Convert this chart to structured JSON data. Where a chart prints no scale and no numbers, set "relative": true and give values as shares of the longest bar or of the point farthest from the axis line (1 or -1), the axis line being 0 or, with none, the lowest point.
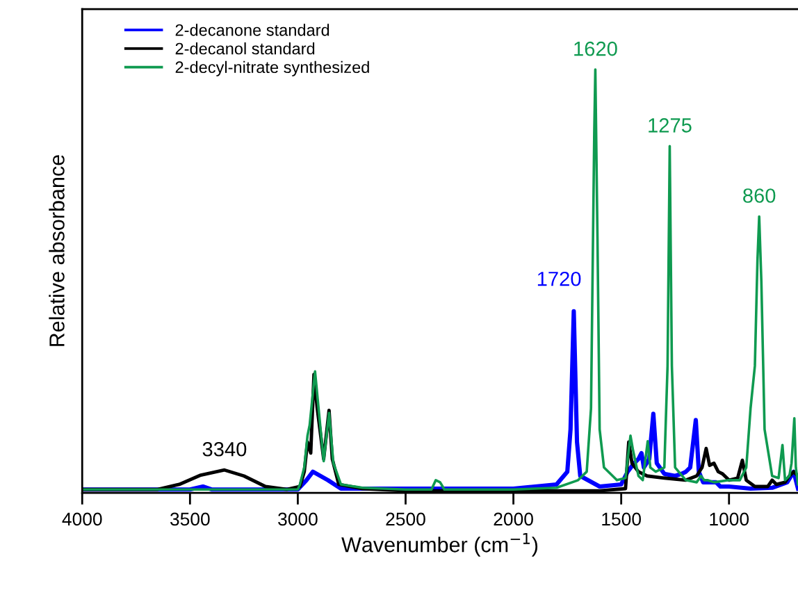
{
  "chart_data": {
    "type": "line",
    "relative": true,
    "xlabel": "Wavenumber (cm$^{−1}$)",
    "ylabel": "Relative absorbance",
    "xlim": [
      4000,
      680
    ],
    "xticks": [
      4000,
      3500,
      3000,
      2500,
      2000,
      1500,
      1000
    ],
    "grid": false,
    "legend": "top left",
    "tick_labels": "x",
    "marker": "none",
    "line_style": "solid",
    "series": [
      {
        "name": "2-decanone standard",
        "color": "#0000ff",
        "x": [
          4000,
          3500,
          3440,
          3400,
          3000,
          2960,
          2930,
          2860,
          2800,
          2000,
          1800,
          1750,
          1735,
          1720,
          1705,
          1690,
          1600,
          1500,
          1470,
          1440,
          1420,
          1406,
          1395,
          1370,
          1351,
          1335,
          1300,
          1250,
          1220,
          1200,
          1180,
          1154,
          1140,
          1120,
          1060,
          1040,
          1000,
          900,
          800,
          730,
          700,
          690,
          680
        ],
        "values": [
          0.008,
          0.008,
          0.015,
          0.008,
          0.008,
          0.03,
          0.05,
          0.03,
          0.01,
          0.01,
          0.02,
          0.05,
          0.15,
          0.429,
          0.12,
          0.04,
          0.015,
          0.02,
          0.05,
          0.07,
          0.08,
          0.094,
          0.06,
          0.08,
          0.187,
          0.07,
          0.045,
          0.04,
          0.045,
          0.05,
          0.06,
          0.172,
          0.05,
          0.025,
          0.025,
          0.015,
          0.015,
          0.01,
          0.012,
          0.025,
          0.05,
          0.03,
          0.01
        ]
      },
      {
        "name": "2-decanol standard",
        "color": "#000000",
        "x": [
          4000,
          3650,
          3550,
          3450,
          3340,
          3250,
          3150,
          3050,
          2990,
          2970,
          2955,
          2940,
          2925,
          2910,
          2880,
          2855,
          2840,
          2810,
          2700,
          2500,
          2000,
          1600,
          1480,
          1465,
          1450,
          1420,
          1380,
          1300,
          1200,
          1150,
          1125,
          1106,
          1090,
          1070,
          1050,
          1030,
          1000,
          960,
          938,
          920,
          880,
          820,
          800,
          780,
          740,
          720,
          700,
          680
        ],
        "values": [
          0.008,
          0.008,
          0.02,
          0.042,
          0.054,
          0.04,
          0.015,
          0.008,
          0.015,
          0.05,
          0.12,
          0.094,
          0.28,
          0.2,
          0.08,
          0.195,
          0.08,
          0.02,
          0.01,
          0.005,
          0.005,
          0.005,
          0.01,
          0.12,
          0.07,
          0.05,
          0.04,
          0.035,
          0.03,
          0.04,
          0.06,
          0.105,
          0.065,
          0.07,
          0.05,
          0.045,
          0.03,
          0.035,
          0.077,
          0.03,
          0.015,
          0.015,
          0.03,
          0.02,
          0.025,
          0.04,
          0.05,
          0.04
        ]
      },
      {
        "name": "2-decyl-nitrate synthesized",
        "color": "#0f9a50",
        "x": [
          4000,
          3000,
          2990,
          2970,
          2955,
          2945,
          2920,
          2900,
          2880,
          2855,
          2835,
          2800,
          2700,
          2500,
          2380,
          2360,
          2340,
          2320,
          2000,
          1800,
          1700,
          1660,
          1640,
          1625,
          1620,
          1610,
          1600,
          1580,
          1520,
          1480,
          1470,
          1457,
          1445,
          1420,
          1400,
          1390,
          1377,
          1365,
          1340,
          1300,
          1285,
          1275,
          1265,
          1250,
          1200,
          1150,
          1130,
          1115,
          1100,
          1070,
          1000,
          950,
          920,
          900,
          880,
          868,
          860,
          850,
          835,
          800,
          770,
          752,
          740,
          720,
          710,
          697,
          690,
          680
        ],
        "values": [
          0.008,
          0.008,
          0.02,
          0.06,
          0.135,
          0.16,
          0.287,
          0.18,
          0.075,
          0.189,
          0.07,
          0.02,
          0.012,
          0.008,
          0.008,
          0.03,
          0.025,
          0.008,
          0.008,
          0.012,
          0.03,
          0.05,
          0.2,
          0.85,
          1.0,
          0.6,
          0.15,
          0.06,
          0.03,
          0.035,
          0.08,
          0.135,
          0.1,
          0.04,
          0.03,
          0.07,
          0.122,
          0.06,
          0.05,
          0.06,
          0.3,
          0.819,
          0.3,
          0.06,
          0.03,
          0.025,
          0.04,
          0.03,
          0.03,
          0.025,
          0.03,
          0.03,
          0.06,
          0.2,
          0.3,
          0.55,
          0.653,
          0.5,
          0.15,
          0.04,
          0.035,
          0.113,
          0.03,
          0.04,
          0.07,
          0.176,
          0.06,
          0.02
        ]
      }
    ],
    "annotations": [
      {
        "text": "3340",
        "x": 3340,
        "y": 0.054
      },
      {
        "text": "1720",
        "x": 1720,
        "y": 0.429
      },
      {
        "text": "1620",
        "x": 1620,
        "y": 1.0
      },
      {
        "text": "1275",
        "x": 1275,
        "y": 0.819
      },
      {
        "text": "860",
        "x": 860,
        "y": 0.653
      }
    ]
  }
}
